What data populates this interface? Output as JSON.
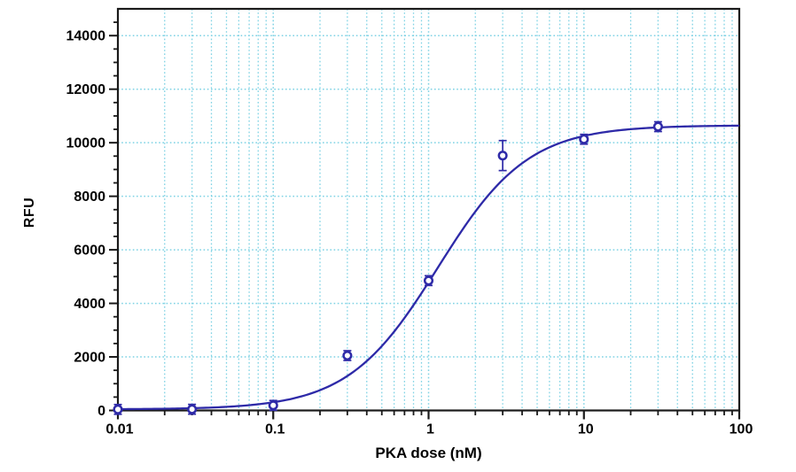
{
  "chart_data": {
    "type": "scatter",
    "title": "",
    "xlabel": "PKA dose (nM)",
    "ylabel": "RFU",
    "x_scale": "log",
    "xlim": [
      0.01,
      100
    ],
    "ylim": [
      0,
      15000
    ],
    "x_major_ticks": [
      0.01,
      0.1,
      1,
      10,
      100
    ],
    "x_tick_labels": [
      "0.01",
      "0.1",
      "1",
      "10",
      "100"
    ],
    "y_major_ticks": [
      0,
      2000,
      4000,
      6000,
      8000,
      10000,
      12000,
      14000
    ],
    "y_tick_labels": [
      "0",
      "2000",
      "4000",
      "6000",
      "8000",
      "10000",
      "12000",
      "14000"
    ],
    "y_minor_step": 500,
    "grid": {
      "show": true,
      "style": "dotted",
      "color": "#7ed2e4"
    },
    "legend": "none",
    "points": [
      {
        "x": 0.01,
        "y": 40,
        "err": 30
      },
      {
        "x": 0.03,
        "y": 45,
        "err": 30
      },
      {
        "x": 0.1,
        "y": 190,
        "err": 90
      },
      {
        "x": 0.3,
        "y": 2050,
        "err": 110
      },
      {
        "x": 1,
        "y": 4850,
        "err": 150
      },
      {
        "x": 3,
        "y": 9520,
        "err": 560
      },
      {
        "x": 10,
        "y": 10130,
        "err": 160
      },
      {
        "x": 30,
        "y": 10600,
        "err": 120
      }
    ],
    "fit_curve": {
      "model": "4PL",
      "bottom": 40,
      "top": 10650,
      "ec50": 1.15,
      "hill": 1.5
    },
    "colors": {
      "series": "#2e2aa8",
      "marker_fill": "#ffffff",
      "grid": "#7ed2e4",
      "axis": "#1a1a1a",
      "text": "#000000"
    }
  }
}
